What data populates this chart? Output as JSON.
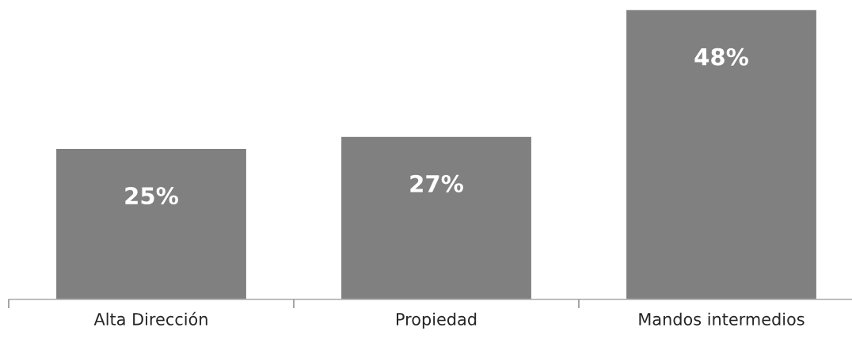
{
  "chart_data": {
    "type": "bar",
    "categories": [
      "Alta Dirección",
      "Propiedad",
      "Mandos intermedios"
    ],
    "values": [
      25,
      27,
      48
    ],
    "color": "#808080",
    "data_labels": true,
    "value_labels": [
      "25%",
      "27%",
      "48%"
    ],
    "grid": false,
    "legend": false
  }
}
